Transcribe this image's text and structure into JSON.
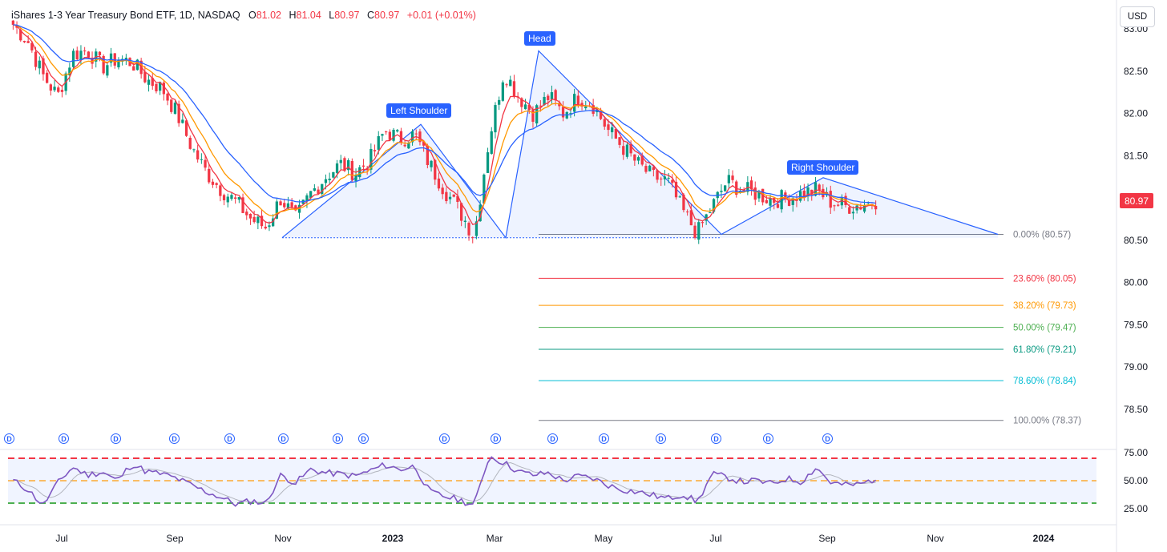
{
  "legend": {
    "title": "iShares 1-3 Year Treasury Bond ETF, 1D, NASDAQ",
    "open_label": "O",
    "open": "81.02",
    "high_label": "H",
    "high": "81.04",
    "low_label": "L",
    "low": "80.97",
    "close_label": "C",
    "close": "80.97",
    "change": "+0.01 (+0.01%)"
  },
  "currency_button": "USD",
  "last_price_tag": "80.97",
  "colors": {
    "up": "#089981",
    "down": "#f23645",
    "ema_fast": "#f23645",
    "ema_mid": "#ff9800",
    "ema_slow": "#2962ff",
    "pattern": "#2962ff",
    "rsi": "#7e57c2"
  },
  "pattern_labels": [
    {
      "text": "Head"
    },
    {
      "text": "Left Shoulder"
    },
    {
      "text": "Right Shoulder"
    }
  ],
  "dividend_marker_text": "D",
  "chart_data": {
    "type": "line",
    "ylim": [
      78.3,
      83.05
    ],
    "y_ticks": [
      "83.00",
      "82.50",
      "82.00",
      "81.50",
      "81.00",
      "80.50",
      "80.00",
      "79.50",
      "79.00",
      "78.50"
    ],
    "x_ticks": [
      "Jul",
      "Sep",
      "Nov",
      "2023",
      "Mar",
      "May",
      "Jul",
      "Sep",
      "Nov",
      "2024"
    ],
    "fibonacci_levels": [
      {
        "label": "0.00% (80.57)",
        "price": 80.57,
        "color": "#787b86"
      },
      {
        "label": "23.60% (80.05)",
        "price": 80.05,
        "color": "#f23645"
      },
      {
        "label": "38.20% (79.73)",
        "price": 79.73,
        "color": "#ff9800"
      },
      {
        "label": "50.00% (79.47)",
        "price": 79.47,
        "color": "#4caf50"
      },
      {
        "label": "61.80% (79.21)",
        "price": 79.21,
        "color": "#089981"
      },
      {
        "label": "78.60% (78.84)",
        "price": 78.84,
        "color": "#00bcd4"
      },
      {
        "label": "100.00% (78.37)",
        "price": 78.37,
        "color": "#787b86"
      }
    ],
    "head_and_shoulders_path": [
      80.53,
      81.87,
      80.53,
      82.74,
      80.57,
      81.24,
      80.57
    ],
    "price_path": [
      83.05,
      82.85,
      82.45,
      82.2,
      82.7,
      82.75,
      82.55,
      82.65,
      82.6,
      82.4,
      82.3,
      82.0,
      81.6,
      81.3,
      81.1,
      80.95,
      80.75,
      80.65,
      81.0,
      80.75,
      81.05,
      81.25,
      81.4,
      81.3,
      81.45,
      81.8,
      81.7,
      81.75,
      81.4,
      81.1,
      80.85,
      80.55,
      81.7,
      82.5,
      82.2,
      82.0,
      82.2,
      82.0,
      82.2,
      82.1,
      81.8,
      81.6,
      81.4,
      81.25,
      81.2,
      80.85,
      80.58,
      80.9,
      81.2,
      81.1,
      81.05,
      80.98,
      81.0,
      81.05,
      81.1,
      80.95,
      80.9,
      80.92,
      80.97
    ],
    "rsi": {
      "ylim": [
        20,
        80
      ],
      "ticks": [
        "75.00",
        "50.00",
        "25.00"
      ],
      "upper": 70,
      "middle": 50,
      "lower": 30,
      "values": [
        50,
        42,
        28,
        48,
        62,
        55,
        58,
        50,
        65,
        58,
        56,
        52,
        46,
        40,
        35,
        29,
        32,
        30,
        55,
        48,
        60,
        57,
        56,
        54,
        59,
        64,
        60,
        63,
        40,
        36,
        33,
        28,
        72,
        66,
        58,
        55,
        57,
        50,
        54,
        52,
        46,
        42,
        40,
        37,
        34,
        38,
        31,
        56,
        53,
        49,
        50,
        47,
        52,
        49,
        62,
        48,
        46,
        47,
        52
      ]
    }
  }
}
